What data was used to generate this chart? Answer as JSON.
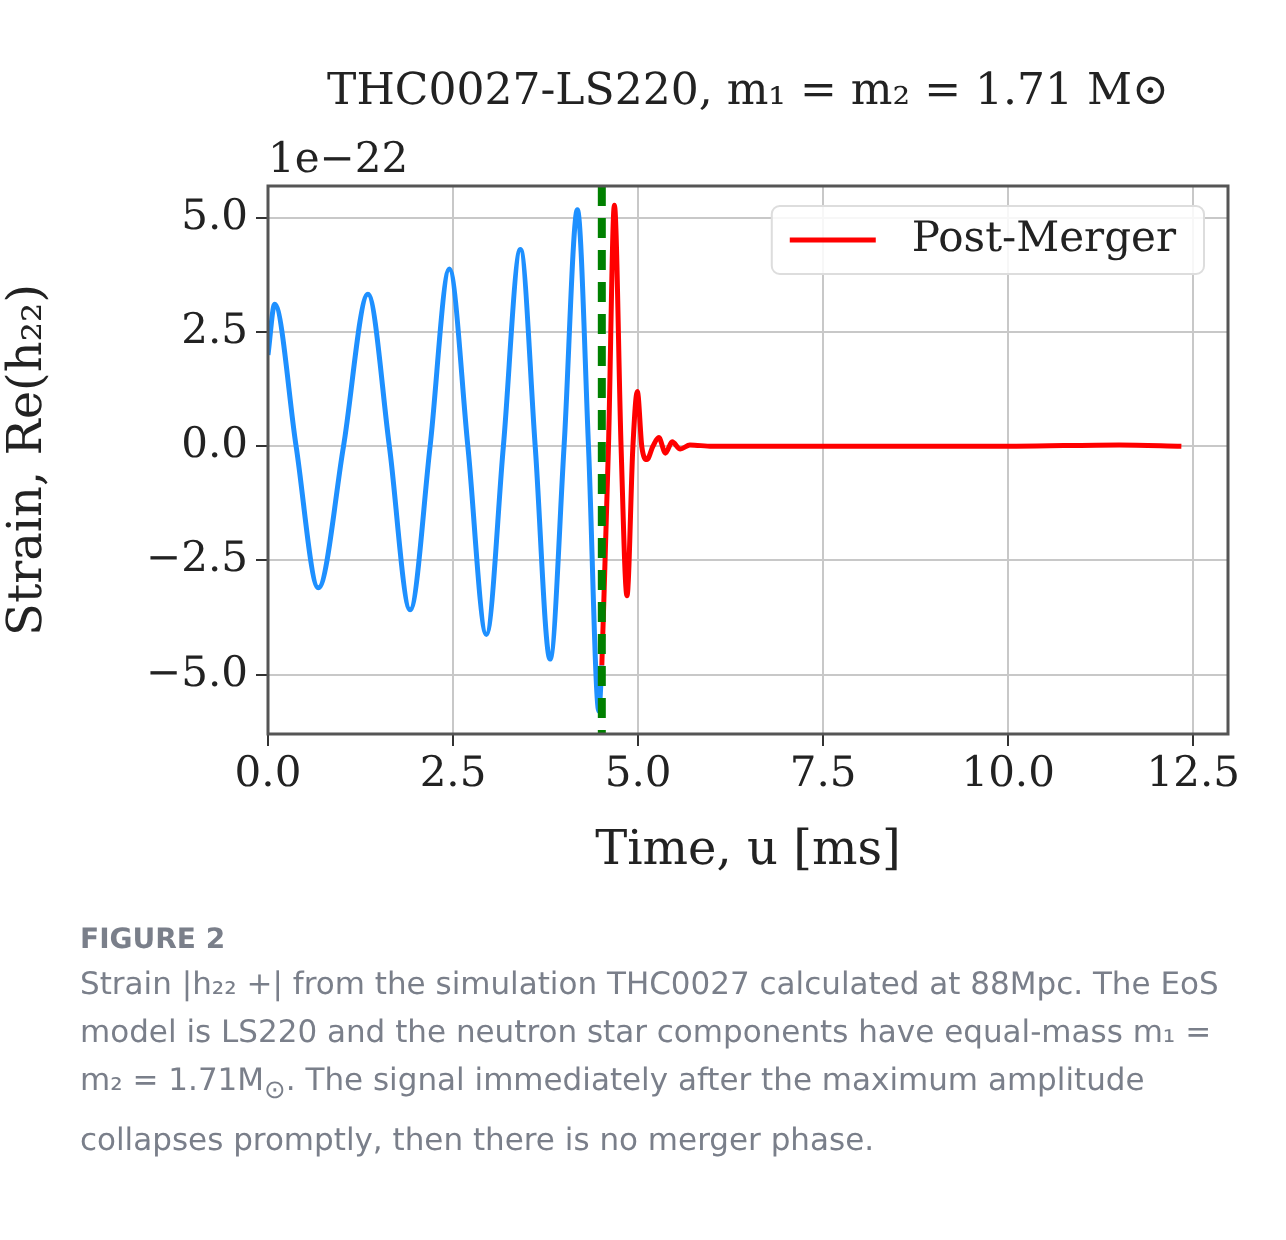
{
  "chart_data": {
    "type": "line",
    "title": "THC0027-LS220, m₁ = m₂ = 1.71 M⊙",
    "xlabel": "Time, u [ms]",
    "ylabel": "Strain, Re(h₂₂)",
    "annotations": [
      "1e−22",
      "FIGURE 2",
      "Strain |h₂₂ +| from the simulation THC0027 calculated at 88Mpc. The EoS model is LS220 and the neutron star components have equal-mass m₁ = m₂ = 1.71M$_{⊙}$. The signal immediately after the maximum amplitude collapses promptly, then there is no merger phase."
    ],
    "xlim": [
      0,
      12.97
    ],
    "ylim": [
      -6.3,
      5.7
    ],
    "xticks": [
      {
        "value": 0,
        "label": "0.0"
      },
      {
        "value": 2.5,
        "label": "2.5"
      },
      {
        "value": 5,
        "label": "5.0"
      },
      {
        "value": 7.5,
        "label": "7.5"
      },
      {
        "value": 10,
        "label": "10.0"
      },
      {
        "value": 12.5,
        "label": "12.5"
      }
    ],
    "yticks": [
      {
        "value": -5,
        "label": "−5.0"
      },
      {
        "value": -2.5,
        "label": "−2.5"
      },
      {
        "value": 0,
        "label": "0.0"
      },
      {
        "value": 2.5,
        "label": "2.5"
      },
      {
        "value": 5,
        "label": "5.0"
      }
    ],
    "grid": true,
    "legend": "top right",
    "ref_lines": [
      {
        "axis": "x",
        "value": 4.51,
        "color": "#008000",
        "line_style": "dashed"
      }
    ],
    "series": [
      {
        "color": "#1e90ff",
        "x": [
          0,
          0.09,
          0.38,
          0.68,
          1.02,
          1.35,
          1.64,
          1.92,
          2.19,
          2.45,
          2.7,
          2.95,
          3.18,
          3.41,
          3.61,
          3.81,
          4.0,
          4.18,
          4.33,
          4.47,
          4.51
        ],
        "values": [
          2.0,
          3.11,
          0,
          -3.1,
          0,
          3.33,
          0,
          -3.58,
          0,
          3.88,
          0,
          -4.12,
          0,
          4.31,
          0,
          -4.66,
          0,
          5.18,
          0,
          -5.8,
          -4.8
        ]
      },
      {
        "name": "Post-Merger",
        "color": "#ff0000",
        "x": [
          4.51,
          4.6,
          4.68,
          4.77,
          4.85,
          4.93,
          4.99,
          5.05,
          5.12,
          5.2,
          5.28,
          5.37,
          5.46,
          5.57,
          5.7,
          6.0,
          8.0,
          10.0,
          11.5,
          12.34
        ],
        "values": [
          -4.8,
          0,
          5.28,
          0,
          -3.27,
          0,
          1.2,
          0,
          -0.29,
          0,
          0.19,
          -0.15,
          0.1,
          -0.06,
          0.03,
          0,
          0,
          0,
          0.03,
          0
        ]
      }
    ]
  }
}
